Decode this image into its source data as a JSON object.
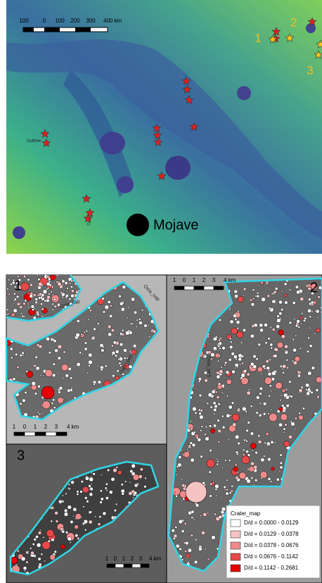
{
  "map": {
    "scale_labels": [
      "100",
      "0",
      "100",
      "200",
      "300",
      "400 km"
    ],
    "sites": [
      "1",
      "2",
      "3"
    ],
    "place": "Mojave",
    "outflow_labels": [
      "Outflow",
      "Outflow"
    ]
  },
  "panels": [
    {
      "label": "1",
      "scale_labels": [
        "1",
        "0",
        "1",
        "2",
        "3",
        "4 km"
      ],
      "unit_labels": [
        "Oxia_cap",
        "Oxia_cap",
        "Oxia_sed"
      ]
    },
    {
      "label": "2",
      "scale_labels": [
        "1",
        "0",
        "1",
        "2",
        "3",
        "4 km"
      ],
      "unit_labels": [
        "Oxia_sed"
      ]
    },
    {
      "label": "3",
      "scale_labels": [
        "1",
        "0",
        "1",
        "2",
        "3",
        "4 km"
      ]
    }
  ],
  "legend": {
    "title": "Crater_map",
    "items": [
      {
        "label": "D/d = 0.0000 - 0.0129",
        "color": "#ffffff"
      },
      {
        "label": "D/d = 0.0129 - 0.0378",
        "color": "#f6c3c3"
      },
      {
        "label": "D/d = 0.0378 - 0.0676",
        "color": "#ef8a8a"
      },
      {
        "label": "D/d = 0.0676 - 0.1142",
        "color": "#e84848"
      },
      {
        "label": "D/d = 0.1142 - 0.2681",
        "color": "#e60000"
      }
    ]
  }
}
